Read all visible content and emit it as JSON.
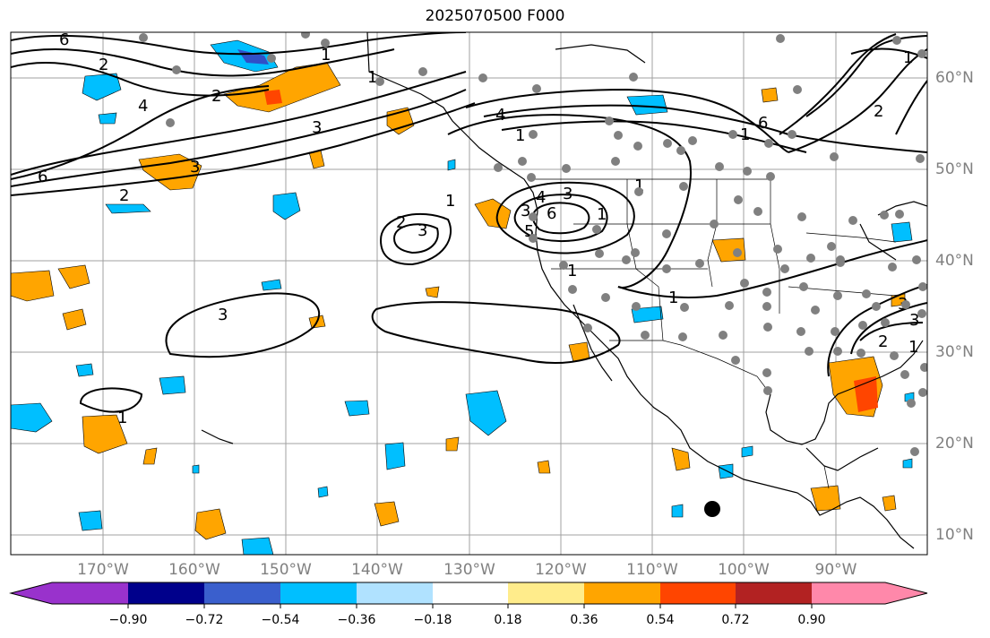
{
  "title": "2025070500 F000",
  "map": {
    "lon_labels": [
      "170°W",
      "160°W",
      "150°W",
      "140°W",
      "130°W",
      "120°W",
      "110°W",
      "100°W",
      "90°W"
    ],
    "lat_labels": [
      "60°N",
      "50°N",
      "40°N",
      "30°N",
      "20°N",
      "10°N"
    ],
    "contour_labels": [
      "6",
      "2",
      "1",
      "2",
      "1",
      "3",
      "4",
      "4",
      "3",
      "6",
      "2",
      "2",
      "3",
      "3",
      "1",
      "1",
      "1",
      "1",
      "4",
      "3",
      "6",
      "5",
      "3",
      "1",
      "6",
      "2",
      "1",
      "1",
      "1",
      "2",
      "3",
      "3",
      "1",
      "1"
    ],
    "colors": {
      "grid": "#a0a0a0",
      "coast": "#000000",
      "station_dot": "#808080",
      "marker_dot": "#000000",
      "positive_fill": "#ffa500",
      "strong_positive_fill": "#ff4500",
      "negative_fill": "#00bfff",
      "strong_negative_fill": "#3050c8"
    }
  },
  "colorbar": {
    "tick_labels": [
      "−0.90",
      "−0.72",
      "−0.54",
      "−0.36",
      "−0.18",
      "0.18",
      "0.36",
      "0.54",
      "0.72",
      "0.90"
    ],
    "colors": [
      "#9932cc",
      "#00008b",
      "#3a5fcd",
      "#00bfff",
      "#b0e2ff",
      "#ffffff",
      "#ffec8b",
      "#ffa500",
      "#ff4500",
      "#b22222",
      "#ff88aa"
    ]
  }
}
